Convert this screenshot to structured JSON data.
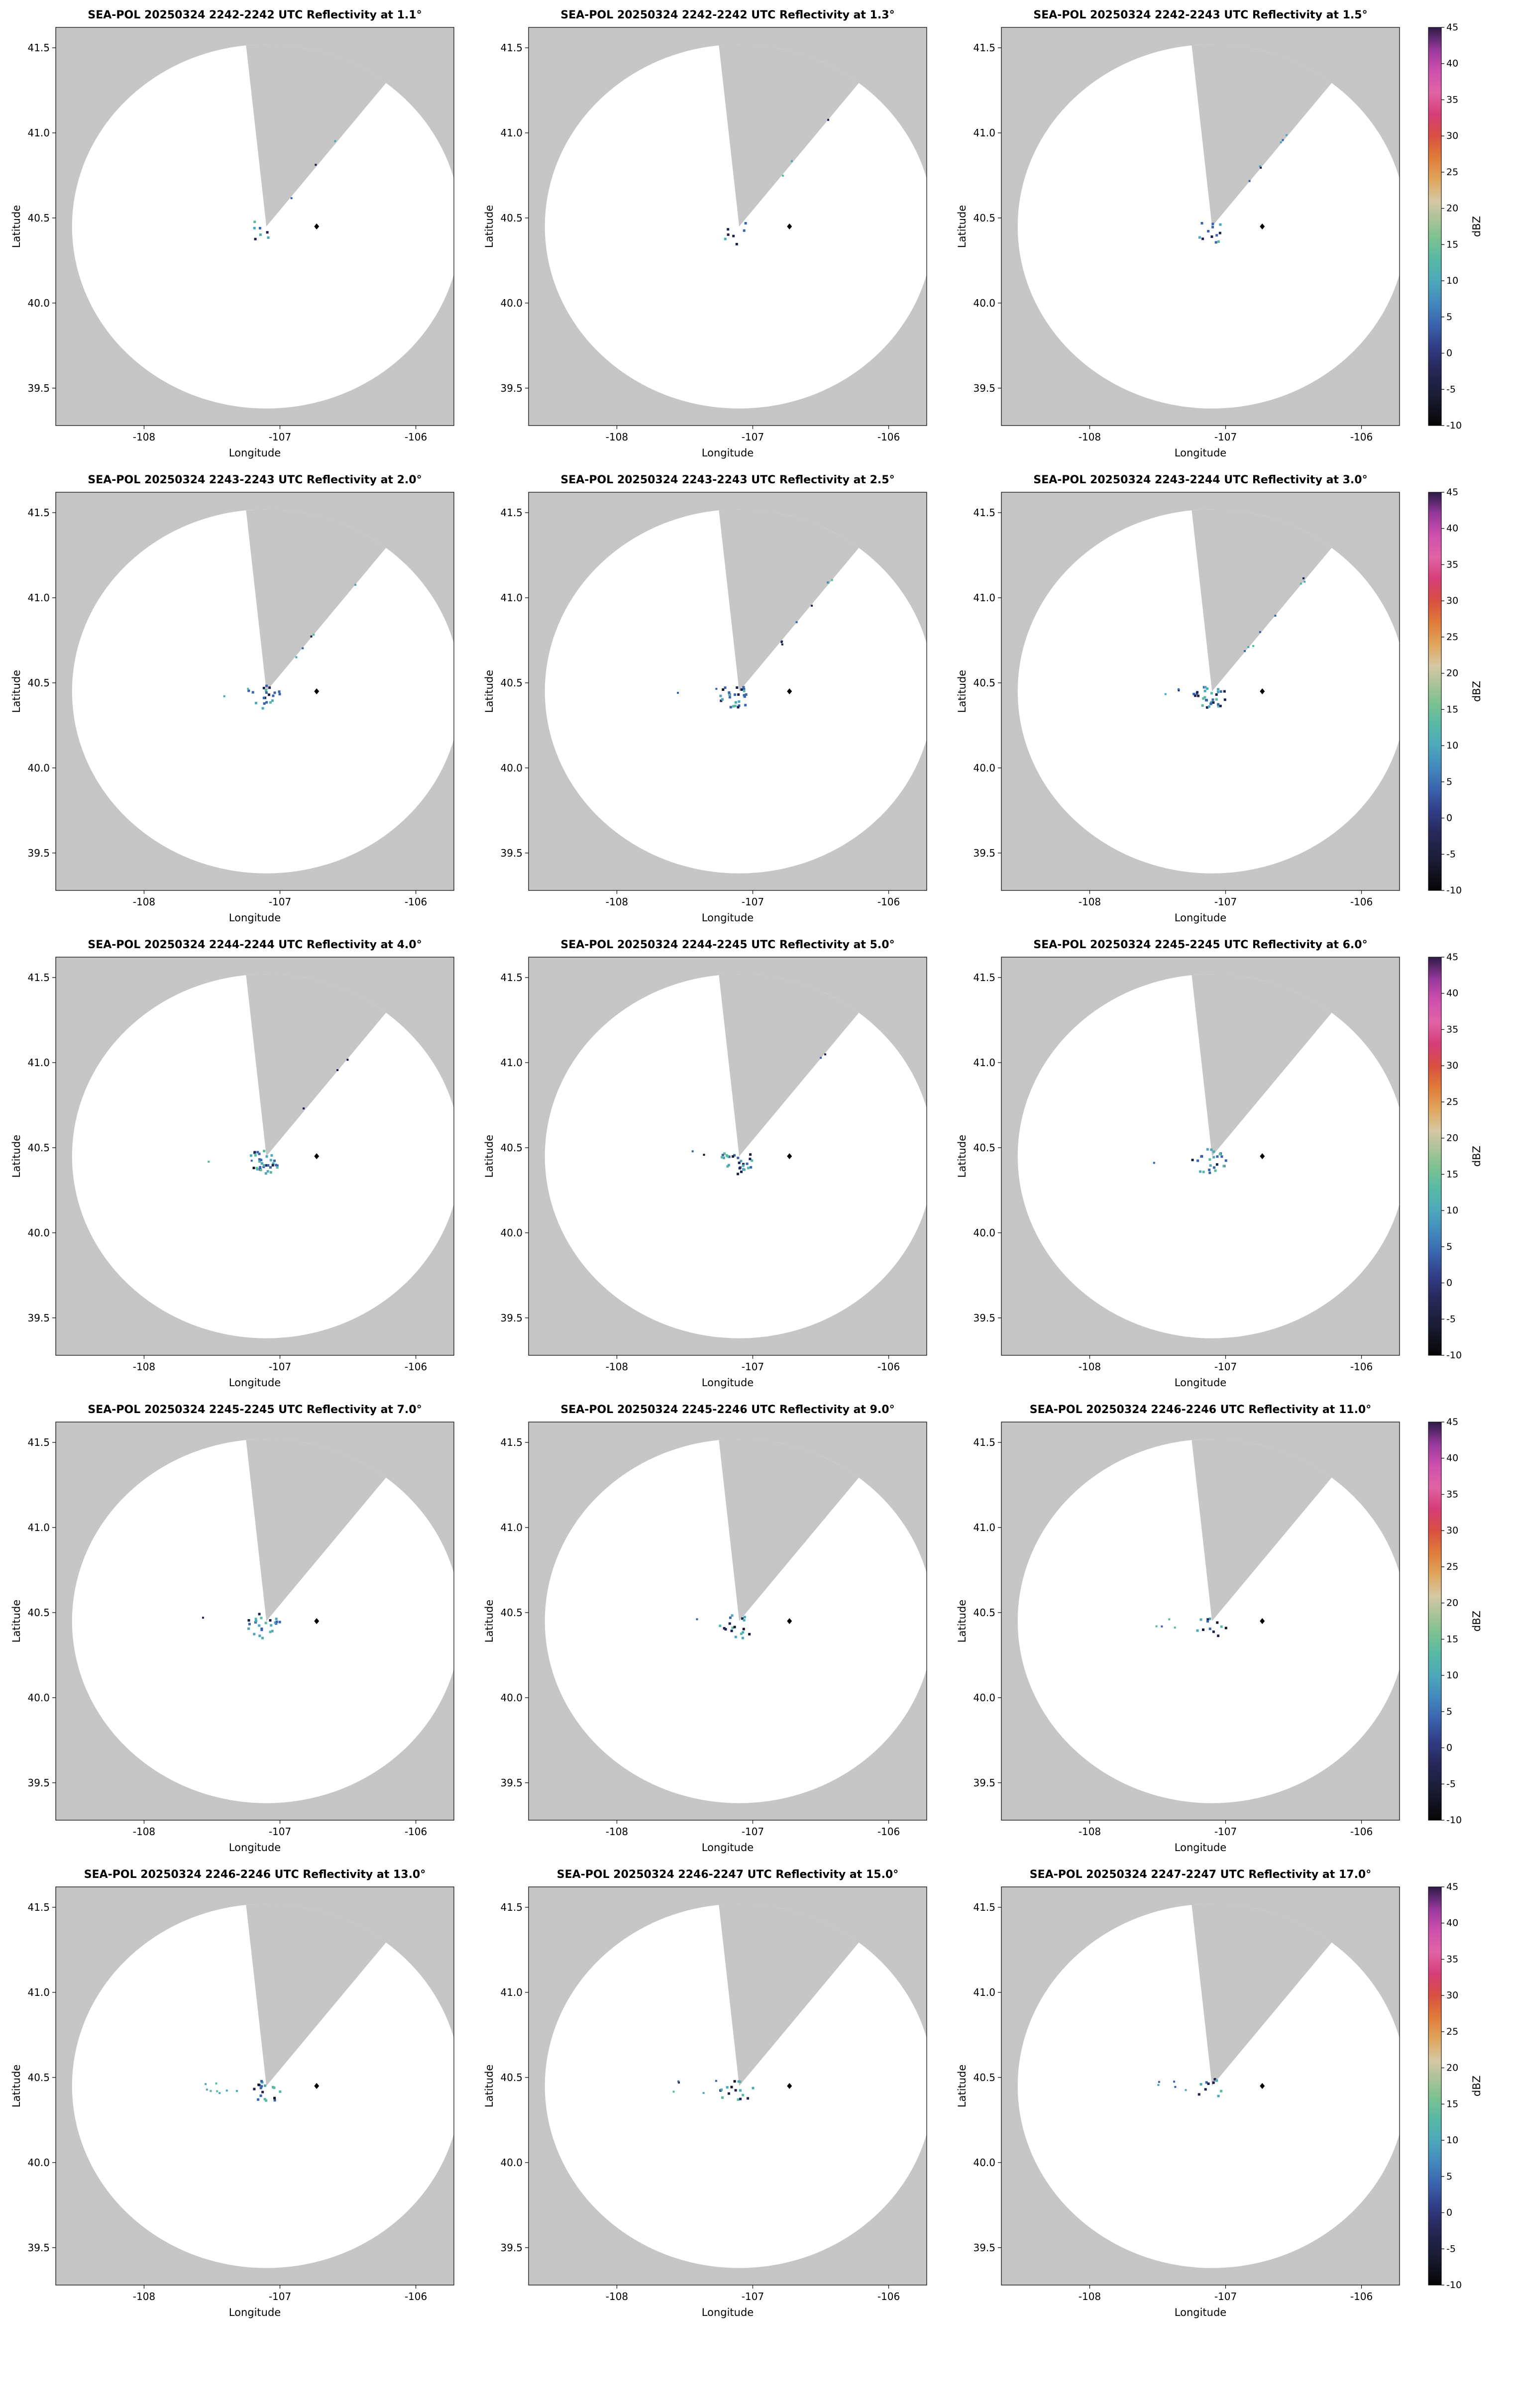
{
  "chart_data": {
    "type": "heatmap",
    "subtype": "radar-ppi-multipanel",
    "grid": {
      "rows": 5,
      "cols": 3
    },
    "xlabel": "Longitude",
    "ylabel": "Latitude",
    "x_ticks": [
      "-108",
      "-107",
      "-106"
    ],
    "x_tick_values": [
      -108,
      -107,
      -106
    ],
    "y_ticks": [
      "39.5",
      "40.0",
      "40.5",
      "41.0",
      "41.5"
    ],
    "y_tick_values": [
      39.5,
      40.0,
      40.5,
      41.0,
      41.5
    ],
    "xlim": [
      -108.65,
      -105.72
    ],
    "ylim": [
      39.28,
      41.62
    ],
    "grid_lines": false,
    "radar": {
      "name": "SEA-POL",
      "date": "20250324",
      "center_lon": -107.1,
      "center_lat": 40.45,
      "coverage_radius_lon_deg": 1.43,
      "coverage_radius_lat_deg": 1.07,
      "blocked_sector_azimuth_deg": [
        -6,
        38
      ],
      "site_marker": {
        "lon": -106.73,
        "lat": 40.45,
        "shape": "diamond",
        "color": "#000000"
      }
    },
    "colors": {
      "outside_coverage": "#c6c6c6",
      "inside_coverage": "#ffffff",
      "echo_palette": [
        "#1c2150",
        "#3a64ad",
        "#4da8bb",
        "#58b9a5",
        "#121225"
      ]
    },
    "colorbar": {
      "label": "dBZ",
      "min": -10,
      "max": 45,
      "tick_step": 5,
      "ticks": [
        -10,
        -5,
        0,
        5,
        10,
        15,
        20,
        25,
        30,
        35,
        40,
        45
      ],
      "stops": [
        {
          "v": -10,
          "c": "#060606"
        },
        {
          "v": -6,
          "c": "#1a1b33"
        },
        {
          "v": -2,
          "c": "#28295c"
        },
        {
          "v": 1,
          "c": "#303e87"
        },
        {
          "v": 4,
          "c": "#3a64ad"
        },
        {
          "v": 7,
          "c": "#4289bd"
        },
        {
          "v": 10,
          "c": "#4da8bb"
        },
        {
          "v": 13,
          "c": "#58b9a5"
        },
        {
          "v": 16,
          "c": "#7ec290"
        },
        {
          "v": 19,
          "c": "#b3c49a"
        },
        {
          "v": 21,
          "c": "#d6c8a3"
        },
        {
          "v": 24,
          "c": "#e0a55c"
        },
        {
          "v": 27,
          "c": "#e07b3a"
        },
        {
          "v": 30,
          "c": "#d94f41"
        },
        {
          "v": 33,
          "c": "#d63d77"
        },
        {
          "v": 36,
          "c": "#e063a5"
        },
        {
          "v": 39,
          "c": "#cf4fae"
        },
        {
          "v": 42,
          "c": "#96399c"
        },
        {
          "v": 45,
          "c": "#2e1a47"
        }
      ]
    },
    "panels": [
      {
        "title": "SEA-POL 20250324 2242-2242 UTC Reflectivity at 1.1°",
        "time_utc": "2242-2242",
        "elevation_deg": 1.1,
        "echo": {
          "cluster": 7,
          "spoke": 3,
          "west": 0
        }
      },
      {
        "title": "SEA-POL 20250324 2242-2242 UTC Reflectivity at 1.3°",
        "time_utc": "2242-2242",
        "elevation_deg": 1.3,
        "echo": {
          "cluster": 7,
          "spoke": 3,
          "west": 0
        }
      },
      {
        "title": "SEA-POL 20250324 2242-2243 UTC Reflectivity at 1.5°",
        "time_utc": "2242-2243",
        "elevation_deg": 1.5,
        "echo": {
          "cluster": 12,
          "spoke": 6,
          "west": 0
        }
      },
      {
        "title": "SEA-POL 20250324 2243-2243 UTC Reflectivity at 2.0°",
        "time_utc": "2243-2243",
        "elevation_deg": 2.0,
        "echo": {
          "cluster": 20,
          "spoke": 5,
          "west": 2
        }
      },
      {
        "title": "SEA-POL 20250324 2243-2243 UTC Reflectivity at 2.5°",
        "time_utc": "2243-2243",
        "elevation_deg": 2.5,
        "echo": {
          "cluster": 28,
          "spoke": 8,
          "west": 2
        }
      },
      {
        "title": "SEA-POL 20250324 2243-2244 UTC Reflectivity at 3.0°",
        "time_utc": "2243-2244",
        "elevation_deg": 3.0,
        "echo": {
          "cluster": 32,
          "spoke": 8,
          "west": 3
        }
      },
      {
        "title": "SEA-POL 20250324 2244-2244 UTC Reflectivity at 4.0°",
        "time_utc": "2244-2244",
        "elevation_deg": 4.0,
        "echo": {
          "cluster": 36,
          "spoke": 3,
          "west": 2
        }
      },
      {
        "title": "SEA-POL 20250324 2244-2245 UTC Reflectivity at 5.0°",
        "time_utc": "2244-2245",
        "elevation_deg": 5.0,
        "echo": {
          "cluster": 28,
          "spoke": 2,
          "west": 2
        }
      },
      {
        "title": "SEA-POL 20250324 2245-2245 UTC Reflectivity at 6.0°",
        "time_utc": "2245-2245",
        "elevation_deg": 6.0,
        "echo": {
          "cluster": 24,
          "spoke": 0,
          "west": 1
        }
      },
      {
        "title": "SEA-POL 20250324 2245-2245 UTC Reflectivity at 7.0°",
        "time_utc": "2245-2245",
        "elevation_deg": 7.0,
        "echo": {
          "cluster": 24,
          "spoke": 0,
          "west": 1
        }
      },
      {
        "title": "SEA-POL 20250324 2245-2246 UTC Reflectivity at 9.0°",
        "time_utc": "2245-2246",
        "elevation_deg": 9.0,
        "echo": {
          "cluster": 18,
          "spoke": 0,
          "west": 1
        }
      },
      {
        "title": "SEA-POL 20250324 2246-2246 UTC Reflectivity at 11.0°",
        "time_utc": "2246-2246",
        "elevation_deg": 11.0,
        "echo": {
          "cluster": 12,
          "spoke": 0,
          "west": 4
        }
      },
      {
        "title": "SEA-POL 20250324 2246-2246 UTC Reflectivity at 13.0°",
        "time_utc": "2246-2246",
        "elevation_deg": 13.0,
        "echo": {
          "cluster": 18,
          "spoke": 0,
          "west": 8
        }
      },
      {
        "title": "SEA-POL 20250324 2246-2247 UTC Reflectivity at 15.0°",
        "time_utc": "2246-2247",
        "elevation_deg": 15.0,
        "echo": {
          "cluster": 16,
          "spoke": 0,
          "west": 5
        }
      },
      {
        "title": "SEA-POL 20250324 2247-2247 UTC Reflectivity at 17.0°",
        "time_utc": "2247-2247",
        "elevation_deg": 17.0,
        "echo": {
          "cluster": 10,
          "spoke": 0,
          "west": 5
        }
      }
    ]
  }
}
